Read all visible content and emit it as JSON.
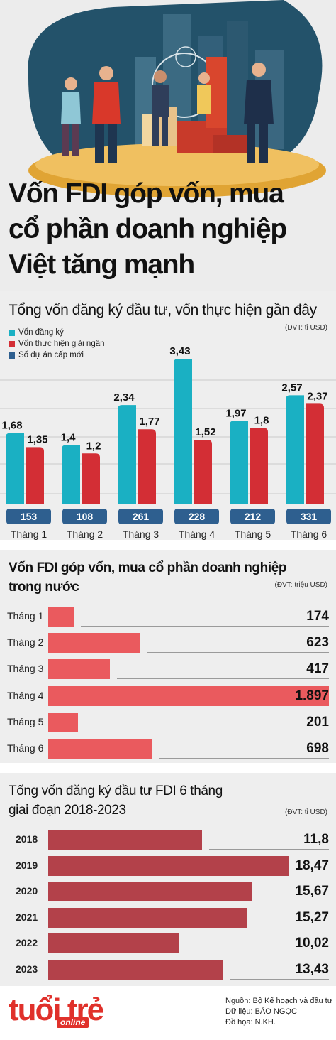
{
  "hero": {
    "title_lines": [
      "Vốn FDI góp vốn, mua",
      "cổ phần doanh nghiệp",
      "Việt tăng mạnh"
    ]
  },
  "colors": {
    "teal": "#1ab0c3",
    "red": "#d32e35",
    "navy": "#2e5f8f",
    "salmon": "#ea5a5e",
    "maroon": "#b3414a",
    "brand": "#e0312b"
  },
  "chart1": {
    "title": "Tổng vốn đăng ký đầu tư, vốn thực hiện gần đây",
    "unit": "(ĐVT: tỉ USD)",
    "legend": [
      "Vốn đăng ký",
      "Vốn thực hiện giải ngân",
      "Số dự án cấp mới"
    ]
  },
  "chart2": {
    "title_lines": [
      "Vốn FDI góp vốn, mua cổ phần doanh nghiệp",
      "trong nước"
    ],
    "unit": "(ĐVT: triệu USD)"
  },
  "chart3": {
    "title_lines": [
      "Tổng vốn đăng ký đầu tư FDI 6 tháng",
      "giai đoạn 2018-2023"
    ],
    "unit": "(ĐVT: tỉ USD)"
  },
  "chart_data": [
    {
      "type": "bar",
      "categories": [
        "Tháng 1",
        "Tháng 2",
        "Tháng 3",
        "Tháng 4",
        "Tháng 5",
        "Tháng 6"
      ],
      "series": [
        {
          "name": "Vốn đăng ký",
          "values": [
            1.68,
            1.4,
            2.34,
            3.43,
            1.97,
            2.57
          ],
          "labels": [
            "1,68",
            "1,4",
            "2,34",
            "3,43",
            "1,97",
            "2,57"
          ]
        },
        {
          "name": "Vốn thực hiện giải ngân",
          "values": [
            1.35,
            1.2,
            1.77,
            1.52,
            1.8,
            2.37
          ],
          "labels": [
            "1,35",
            "1,2",
            "1,77",
            "1,52",
            "1,8",
            "2,37"
          ]
        },
        {
          "name": "Số dự án cấp mới",
          "values": [
            153,
            108,
            261,
            228,
            212,
            331
          ],
          "labels": [
            "153",
            "108",
            "261",
            "228",
            "212",
            "331"
          ]
        }
      ],
      "title": "Tổng vốn đăng ký đầu tư, vốn thực hiện gần đây",
      "ylabel": "(ĐVT: tỉ USD)",
      "ylim": [
        0,
        3.43
      ]
    },
    {
      "type": "bar",
      "orientation": "horizontal",
      "categories": [
        "Tháng 1",
        "Tháng 2",
        "Tháng 3",
        "Tháng 4",
        "Tháng 5",
        "Tháng 6"
      ],
      "values": [
        174,
        623,
        417,
        1897,
        201,
        698
      ],
      "labels": [
        "174",
        "623",
        "417",
        "1.897",
        "201",
        "698"
      ],
      "title": "Vốn FDI góp vốn, mua cổ phần doanh nghiệp trong nước",
      "xlabel": "(ĐVT: triệu USD)"
    },
    {
      "type": "bar",
      "orientation": "horizontal",
      "categories": [
        "2018",
        "2019",
        "2020",
        "2021",
        "2022",
        "2023"
      ],
      "values": [
        11.8,
        18.47,
        15.67,
        15.27,
        10.02,
        13.43
      ],
      "labels": [
        "11,8",
        "18,47",
        "15,67",
        "15,27",
        "10,02",
        "13,43"
      ],
      "title": "Tổng vốn đăng ký đầu tư FDI 6 tháng giai đoạn 2018-2023",
      "xlabel": "(ĐVT: tỉ USD)"
    }
  ],
  "footer": {
    "logo_main": "tuổi trẻ",
    "logo_sub": "online",
    "credits": [
      "Nguồn: Bộ Kế hoạch và đầu tư",
      "Dữ liệu: BẢO NGỌC",
      "Đồ họa: N.KH."
    ]
  }
}
